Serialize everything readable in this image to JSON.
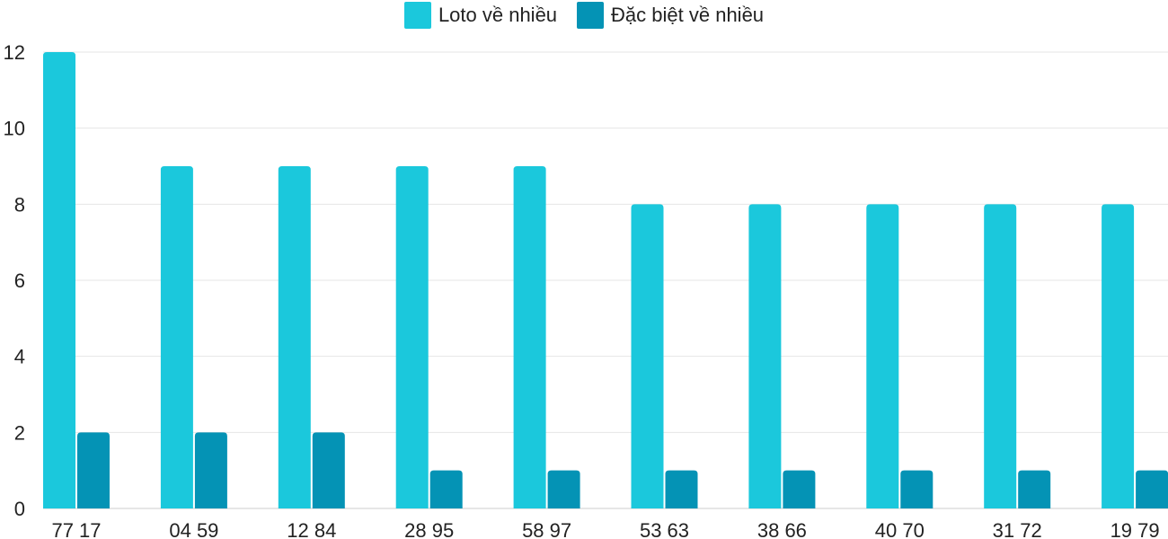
{
  "chart_data": {
    "type": "bar",
    "categories": [
      "77 17",
      "04 59",
      "12 84",
      "28 95",
      "58 97",
      "53 63",
      "38 66",
      "40 70",
      "31 72",
      "19 79"
    ],
    "series": [
      {
        "name": "Loto về nhiều",
        "color": "#1BC8DC",
        "values": [
          12,
          9,
          9,
          9,
          9,
          8,
          8,
          8,
          8,
          8
        ]
      },
      {
        "name": "Đặc biệt về nhiều",
        "color": "#0493B5",
        "values": [
          2,
          2,
          2,
          1,
          1,
          1,
          1,
          1,
          1,
          1
        ]
      }
    ],
    "yticks": [
      "0",
      "2",
      "4",
      "6",
      "8",
      "10",
      "12"
    ],
    "ylim": [
      0,
      12
    ],
    "grid": true,
    "legend": "top-center",
    "xlabel": "",
    "ylabel": ""
  }
}
